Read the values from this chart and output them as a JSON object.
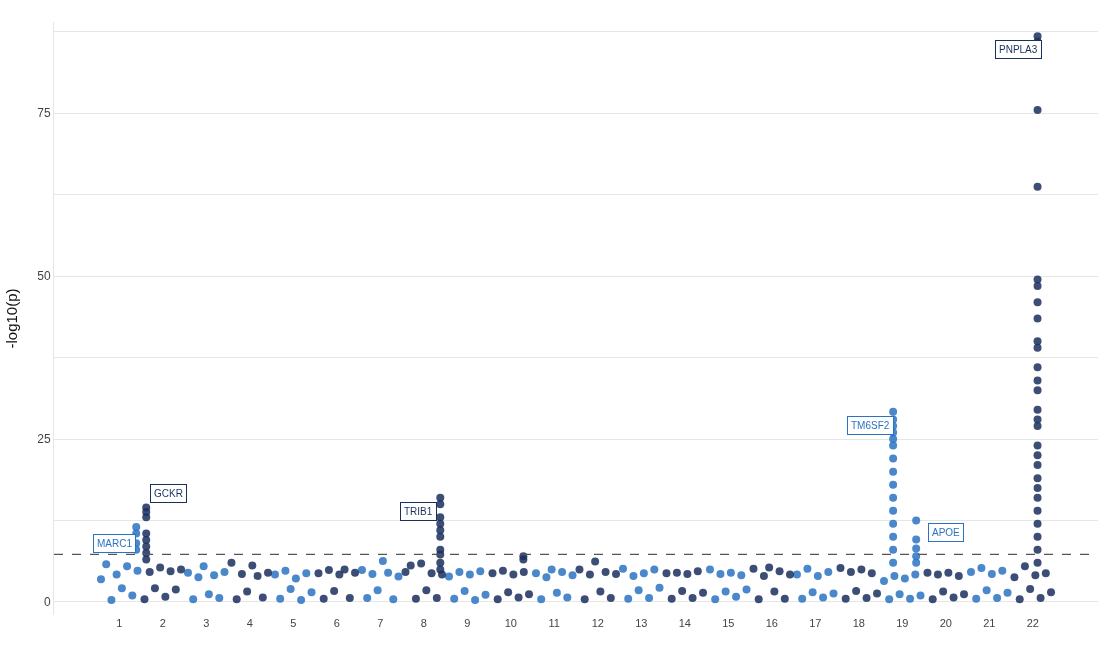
{
  "chart_data": {
    "type": "scatter",
    "ylabel": "-log10(p)",
    "xlim": [
      -0.5,
      23.5
    ],
    "ylim": [
      -2,
      89
    ],
    "xticks": [
      1,
      2,
      3,
      4,
      5,
      6,
      7,
      8,
      9,
      10,
      11,
      12,
      13,
      14,
      15,
      16,
      17,
      18,
      19,
      20,
      21,
      22
    ],
    "yticks": [
      0,
      {
        "value": 12.5,
        "label": null
      },
      25,
      {
        "value": 37.5,
        "label": null
      },
      50,
      {
        "value": 62.5,
        "label": null
      },
      75,
      {
        "value": 87.5,
        "label": null
      }
    ],
    "grid": "y",
    "marker": "circle",
    "series": [
      {
        "color": "#2b72c2",
        "x": [
          0.58,
          0.7,
          0.82,
          0.94,
          1.06,
          1.18,
          1.3,
          1.42,
          1.39,
          1.39,
          1.39,
          1.39,
          2.58,
          2.7,
          2.82,
          2.94,
          3.06,
          3.18,
          3.3,
          3.42,
          4.58,
          4.7,
          4.82,
          4.94,
          5.06,
          5.18,
          5.3,
          5.42,
          6.58,
          6.7,
          6.82,
          6.94,
          7.06,
          7.18,
          7.3,
          7.42,
          8.58,
          8.7,
          8.82,
          8.94,
          9.06,
          9.18,
          9.3,
          9.42,
          10.58,
          10.7,
          10.82,
          10.94,
          11.06,
          11.18,
          11.3,
          11.42,
          12.58,
          12.7,
          12.82,
          12.94,
          13.06,
          13.18,
          13.3,
          13.42,
          14.58,
          14.7,
          14.82,
          14.94,
          15.06,
          15.18,
          15.3,
          15.42,
          16.58,
          16.7,
          16.82,
          16.94,
          17.06,
          17.18,
          17.3,
          17.42,
          18.58,
          18.7,
          18.82,
          18.94,
          19.06,
          19.18,
          19.3,
          19.42,
          18.79,
          18.79,
          18.79,
          18.79,
          18.79,
          18.79,
          18.79,
          18.79,
          18.79,
          18.79,
          18.79,
          18.79,
          18.79,
          18.79,
          18.79,
          19.32,
          19.32,
          19.32,
          19.32,
          19.32,
          20.58,
          20.7,
          20.82,
          20.94,
          21.06,
          21.18,
          21.3,
          21.42
        ],
        "values": [
          3.5,
          5.8,
          0.3,
          4.2,
          2.1,
          5.5,
          1.0,
          4.8,
          11.5,
          10.5,
          9,
          8,
          4.5,
          0.4,
          3.8,
          5.5,
          1.2,
          4.1,
          0.6,
          4.6,
          4.2,
          0.5,
          4.8,
          2.0,
          3.6,
          0.3,
          4.4,
          1.5,
          4.9,
          0.6,
          4.3,
          1.8,
          6.3,
          4.5,
          0.4,
          3.9,
          3.9,
          0.5,
          4.6,
          1.7,
          4.2,
          0.3,
          4.7,
          1.1,
          4.4,
          0.4,
          3.8,
          5.0,
          1.4,
          4.6,
          0.7,
          4.1,
          5.1,
          0.5,
          4.0,
          1.8,
          4.4,
          0.6,
          5.0,
          2.2,
          5.0,
          0.4,
          4.3,
          1.6,
          4.5,
          0.8,
          4.1,
          1.9,
          4.2,
          0.5,
          5.1,
          1.5,
          4.0,
          0.7,
          4.6,
          1.3,
          3.2,
          0.4,
          4.0,
          1.2,
          3.6,
          0.5,
          4.2,
          1.0,
          29.2,
          28,
          27,
          26,
          25,
          24,
          22,
          20,
          18,
          16,
          14,
          12,
          10,
          8,
          6,
          12.5,
          9.6,
          8.2,
          7,
          6,
          4.6,
          0.5,
          5.2,
          1.8,
          4.3,
          0.6,
          4.8,
          1.4
        ]
      },
      {
        "color": "#1b2f5e",
        "x": [
          1.58,
          1.7,
          1.82,
          1.94,
          2.06,
          2.18,
          2.3,
          2.42,
          1.62,
          1.62,
          1.62,
          1.62,
          1.62,
          1.62,
          1.62,
          1.62,
          3.58,
          3.7,
          3.82,
          3.94,
          4.06,
          4.18,
          4.3,
          4.42,
          5.58,
          5.7,
          5.82,
          5.94,
          6.06,
          6.18,
          6.3,
          6.42,
          7.58,
          7.7,
          7.82,
          7.94,
          8.06,
          8.18,
          8.3,
          8.42,
          8.38,
          8.38,
          8.38,
          8.38,
          8.38,
          8.38,
          8.38,
          8.38,
          8.38,
          8.38,
          9.58,
          9.7,
          9.82,
          9.94,
          10.06,
          10.18,
          10.3,
          10.42,
          10.29,
          10.29,
          11.58,
          11.7,
          11.82,
          11.94,
          12.06,
          12.18,
          12.3,
          12.42,
          13.58,
          13.7,
          13.82,
          13.94,
          14.06,
          14.18,
          14.3,
          14.42,
          15.58,
          15.7,
          15.82,
          15.94,
          16.06,
          16.18,
          16.3,
          16.42,
          17.58,
          17.7,
          17.82,
          17.94,
          18.06,
          18.18,
          18.3,
          18.42,
          19.58,
          19.7,
          19.82,
          19.94,
          20.06,
          20.18,
          20.3,
          20.42,
          21.58,
          21.7,
          21.82,
          21.94,
          22.06,
          22.18,
          22.3,
          22.42,
          22.11,
          22.11,
          22.11,
          22.11,
          22.11,
          22.11,
          22.11,
          22.11,
          22.11,
          22.11,
          22.11,
          22.11,
          22.11,
          22.11,
          22.11,
          22.11,
          22.11,
          22.11,
          22.11,
          22.11,
          22.11,
          22.11,
          22.11,
          22.11,
          22.11,
          22.11,
          22.11
        ],
        "values": [
          0.4,
          4.6,
          2.1,
          5.3,
          0.8,
          4.7,
          1.9,
          5.0,
          14.5,
          13.8,
          13,
          10.5,
          9.5,
          8.5,
          7.5,
          6.5,
          6.0,
          0.4,
          4.3,
          1.6,
          5.6,
          4.0,
          0.7,
          4.5,
          4.4,
          0.5,
          4.9,
          1.7,
          4.2,
          5.0,
          0.6,
          4.5,
          4.6,
          5.6,
          0.5,
          5.9,
          1.8,
          4.4,
          0.6,
          4.2,
          16,
          15,
          13,
          12,
          11,
          10,
          8,
          7.3,
          6,
          5,
          4.4,
          0.4,
          4.8,
          1.5,
          4.2,
          0.7,
          4.6,
          1.2,
          7.0,
          6.5,
          5.0,
          0.4,
          4.2,
          6.2,
          1.6,
          4.6,
          0.6,
          4.3,
          4.4,
          0.5,
          4.5,
          1.7,
          4.3,
          0.6,
          4.7,
          1.4,
          5.1,
          0.4,
          4.0,
          5.3,
          1.6,
          4.7,
          0.5,
          4.2,
          5.2,
          0.5,
          4.6,
          1.7,
          5.0,
          0.6,
          4.4,
          1.3,
          4.5,
          0.4,
          4.2,
          1.6,
          4.5,
          0.7,
          4.0,
          1.2,
          3.8,
          0.4,
          5.5,
          2.0,
          4.1,
          0.6,
          4.4,
          1.5,
          86.8,
          86,
          75.5,
          63.7,
          49.5,
          48.5,
          46,
          43.5,
          40,
          39,
          36,
          34,
          32.5,
          29.5,
          28,
          27,
          24,
          22.5,
          21,
          19,
          17.5,
          16,
          14,
          12,
          10,
          8,
          6
        ]
      }
    ],
    "ref_lines": [
      {
        "axis": "y",
        "value": 7.3,
        "color": "#555555",
        "line_style": "dashed"
      }
    ],
    "annotations": [
      {
        "text": "MARC1",
        "x": 1.39,
        "y": 11.5
      },
      {
        "text": "GCKR",
        "x": 1.62,
        "y": 14.5
      },
      {
        "text": "TRIB1",
        "x": 8.38,
        "y": 16
      },
      {
        "text": "TM6SF2",
        "x": 18.79,
        "y": 29.2
      },
      {
        "text": "APOE",
        "x": 19.32,
        "y": 12.5
      },
      {
        "text": "PNPLA3",
        "x": 22.11,
        "y": 86.8
      }
    ]
  }
}
